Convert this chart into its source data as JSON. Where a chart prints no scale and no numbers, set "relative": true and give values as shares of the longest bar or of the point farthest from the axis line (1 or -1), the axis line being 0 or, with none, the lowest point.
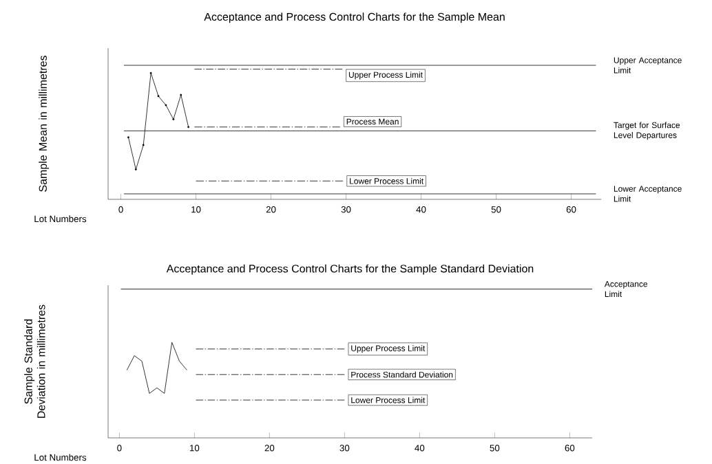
{
  "chart_data": [
    {
      "type": "line",
      "title": "Acceptance and Process Control Charts for the Sample Mean",
      "xlabel": "Lot Numbers",
      "ylabel": "Sample Mean in millimetres",
      "relative": true,
      "xlim": [
        -1.7,
        64
      ],
      "xticks": [
        0,
        10,
        20,
        30,
        40,
        50,
        60
      ],
      "series": [
        {
          "x": [
            1,
            2,
            3,
            4,
            5,
            6,
            7,
            8,
            9
          ],
          "values": [
            0.44,
            0.19,
            0.38,
            0.94,
            0.76,
            0.69,
            0.58,
            0.77,
            0.52
          ],
          "color": "#000000",
          "line_style": "solid",
          "marker": "circle"
        },
        {
          "name": "Upper Acceptance Limit",
          "x": [
            0.4,
            63.3
          ],
          "values": [
            1,
            1
          ],
          "color": "#000000",
          "line_style": "solid"
        },
        {
          "name": "Upper Process Limit",
          "x": [
            9.8,
            29.5
          ],
          "values": [
            0.97,
            0.97
          ],
          "color": "#000000",
          "line_style": "dashdot"
        },
        {
          "name": "Process Mean",
          "x": [
            9.8,
            29.2
          ],
          "values": [
            0.52,
            0.52
          ],
          "color": "#000000",
          "line_style": "dashdot"
        },
        {
          "name": "Target for Surface Level Departures",
          "x": [
            0.4,
            63.3
          ],
          "values": [
            0.49,
            0.49
          ],
          "color": "#000000",
          "line_style": "solid"
        },
        {
          "name": "Lower Process Limit",
          "x": [
            10,
            29.6
          ],
          "values": [
            0.1,
            0.1
          ],
          "color": "#000000",
          "line_style": "dashdot"
        },
        {
          "name": "Lower Acceptance Limit",
          "x": [
            0.4,
            63.3
          ],
          "values": [
            0,
            0
          ],
          "color": "#000000",
          "line_style": "solid"
        }
      ]
    },
    {
      "type": "line",
      "title": "Acceptance and Process Control Charts for the Sample Standard Deviation",
      "xlabel": "Lot Numbers",
      "ylabel": "Sample Standard Deviation in millimetres",
      "relative": true,
      "xlim": [
        -1.5,
        63
      ],
      "xticks": [
        0,
        10,
        20,
        30,
        40,
        50,
        60
      ],
      "series": [
        {
          "x": [
            1,
            2,
            3,
            4,
            5,
            6,
            7,
            8,
            9
          ],
          "values": [
            0.27,
            0.4,
            0.35,
            0.06,
            0.11,
            0.06,
            0.52,
            0.35,
            0.27
          ],
          "color": "#000000",
          "line_style": "solid"
        },
        {
          "name": "Acceptance Limit",
          "x": [
            0.2,
            63
          ],
          "values": [
            1,
            1
          ],
          "color": "#000000",
          "line_style": "solid"
        },
        {
          "name": "Upper Process Limit",
          "x": [
            10.2,
            30
          ],
          "values": [
            0.46,
            0.46
          ],
          "color": "#000000",
          "line_style": "dashdot"
        },
        {
          "name": "Process Standard Deviation",
          "x": [
            10.2,
            30
          ],
          "values": [
            0.23,
            0.23
          ],
          "color": "#000000",
          "line_style": "dashdot"
        },
        {
          "name": "Lower Process Limit",
          "x": [
            10.2,
            30
          ],
          "values": [
            0,
            0
          ],
          "color": "#000000",
          "line_style": "dashdot"
        }
      ]
    }
  ]
}
